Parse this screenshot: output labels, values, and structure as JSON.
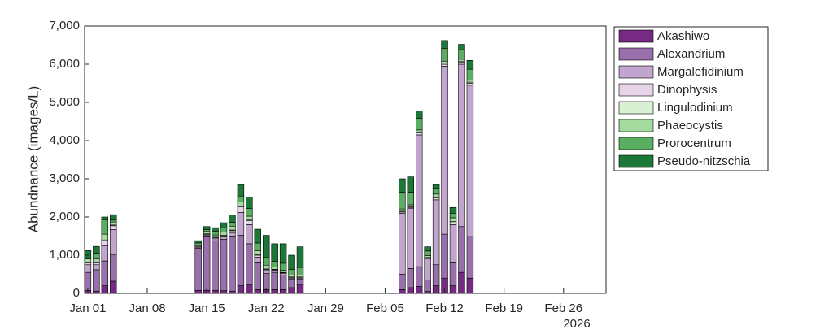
{
  "chart_data": {
    "type": "stacked_bar",
    "y_label": "Abundnance (images/L)",
    "x_secondary_label": "2026",
    "x": [
      "2026-01-01",
      "2026-01-02",
      "2026-01-03",
      "2026-01-04",
      "2026-01-14",
      "2026-01-15",
      "2026-01-16",
      "2026-01-17",
      "2026-01-18",
      "2026-01-19",
      "2026-01-20",
      "2026-01-21",
      "2026-01-22",
      "2026-01-23",
      "2026-01-24",
      "2026-01-25",
      "2026-01-26",
      "2026-02-07",
      "2026-02-08",
      "2026-02-09",
      "2026-02-10",
      "2026-02-11",
      "2026-02-12",
      "2026-02-13",
      "2026-02-14",
      "2026-02-15"
    ],
    "xlim": [
      "2025-12-31T15:00",
      "2026-03-03T00:00"
    ],
    "xticks": [
      {
        "value": "2026-01-01",
        "label": "Jan 01"
      },
      {
        "value": "2026-01-08",
        "label": "Jan 08"
      },
      {
        "value": "2026-01-15",
        "label": "Jan 15"
      },
      {
        "value": "2026-01-22",
        "label": "Jan 22"
      },
      {
        "value": "2026-01-29",
        "label": "Jan 29"
      },
      {
        "value": "2026-02-05",
        "label": "Feb 05"
      },
      {
        "value": "2026-02-12",
        "label": "Feb 12"
      },
      {
        "value": "2026-02-19",
        "label": "Feb 19"
      },
      {
        "value": "2026-02-26",
        "label": "Feb 26"
      }
    ],
    "ylim": [
      0,
      7000
    ],
    "yticks": [
      0,
      {
        "value": 1000,
        "label": "1,000"
      },
      {
        "value": 2000,
        "label": "2,000"
      },
      {
        "value": 3000,
        "label": "3,000"
      },
      {
        "value": 4000,
        "label": "4,000"
      },
      {
        "value": 5000,
        "label": "5,000"
      },
      {
        "value": 6000,
        "label": "6,000"
      },
      {
        "value": 7000,
        "label": "7,000"
      }
    ],
    "legend": "outside-right",
    "series": [
      {
        "name": "Akashiwo",
        "color": "#762a83",
        "values": [
          80,
          60,
          200,
          320,
          80,
          80,
          80,
          70,
          60,
          200,
          220,
          100,
          100,
          100,
          100,
          150,
          220,
          100,
          150,
          180,
          50,
          200,
          400,
          200,
          550,
          400
        ]
      },
      {
        "name": "Alexandrium",
        "color": "#9970ab",
        "values": [
          470,
          560,
          650,
          700,
          1100,
          1400,
          1300,
          1350,
          1420,
          1320,
          1080,
          700,
          420,
          450,
          380,
          220,
          150,
          400,
          500,
          520,
          300,
          550,
          1150,
          600,
          1200,
          1100
        ]
      },
      {
        "name": "Margalefidinium",
        "color": "#c2a5cf",
        "values": [
          200,
          130,
          400,
          650,
          30,
          50,
          50,
          60,
          100,
          600,
          500,
          150,
          80,
          50,
          40,
          30,
          30,
          1600,
          1570,
          3450,
          550,
          1700,
          4400,
          1000,
          4250,
          3950
        ]
      },
      {
        "name": "Dinophysis",
        "color": "#e7d4e8",
        "values": [
          50,
          50,
          120,
          100,
          20,
          20,
          30,
          30,
          60,
          150,
          100,
          50,
          30,
          20,
          20,
          20,
          20,
          30,
          30,
          50,
          30,
          50,
          50,
          50,
          50,
          50
        ]
      },
      {
        "name": "Lingulodinium",
        "color": "#d9f0d3",
        "values": [
          20,
          20,
          30,
          20,
          10,
          10,
          10,
          10,
          20,
          20,
          20,
          20,
          10,
          10,
          10,
          10,
          10,
          20,
          20,
          30,
          10,
          20,
          30,
          30,
          30,
          30
        ]
      },
      {
        "name": "Phaeocystis",
        "color": "#a6dba0",
        "values": [
          80,
          80,
          150,
          80,
          30,
          60,
          60,
          90,
          100,
          100,
          100,
          100,
          100,
          60,
          60,
          50,
          50,
          60,
          50,
          50,
          50,
          80,
          50,
          100,
          50,
          50
        ]
      },
      {
        "name": "Prorocentrum",
        "color": "#5aae61",
        "values": [
          0,
          150,
          380,
          50,
          50,
          50,
          100,
          100,
          100,
          160,
          200,
          200,
          200,
          150,
          180,
          150,
          200,
          440,
          330,
          300,
          120,
          150,
          330,
          120,
          250,
          290
        ]
      },
      {
        "name": "Pseudo-nitzschia",
        "color": "#1b7837",
        "values": [
          220,
          180,
          70,
          140,
          60,
          80,
          90,
          140,
          190,
          300,
          300,
          360,
          580,
          460,
          510,
          370,
          540,
          350,
          400,
          200,
          110,
          100,
          210,
          150,
          140,
          230
        ]
      }
    ]
  }
}
